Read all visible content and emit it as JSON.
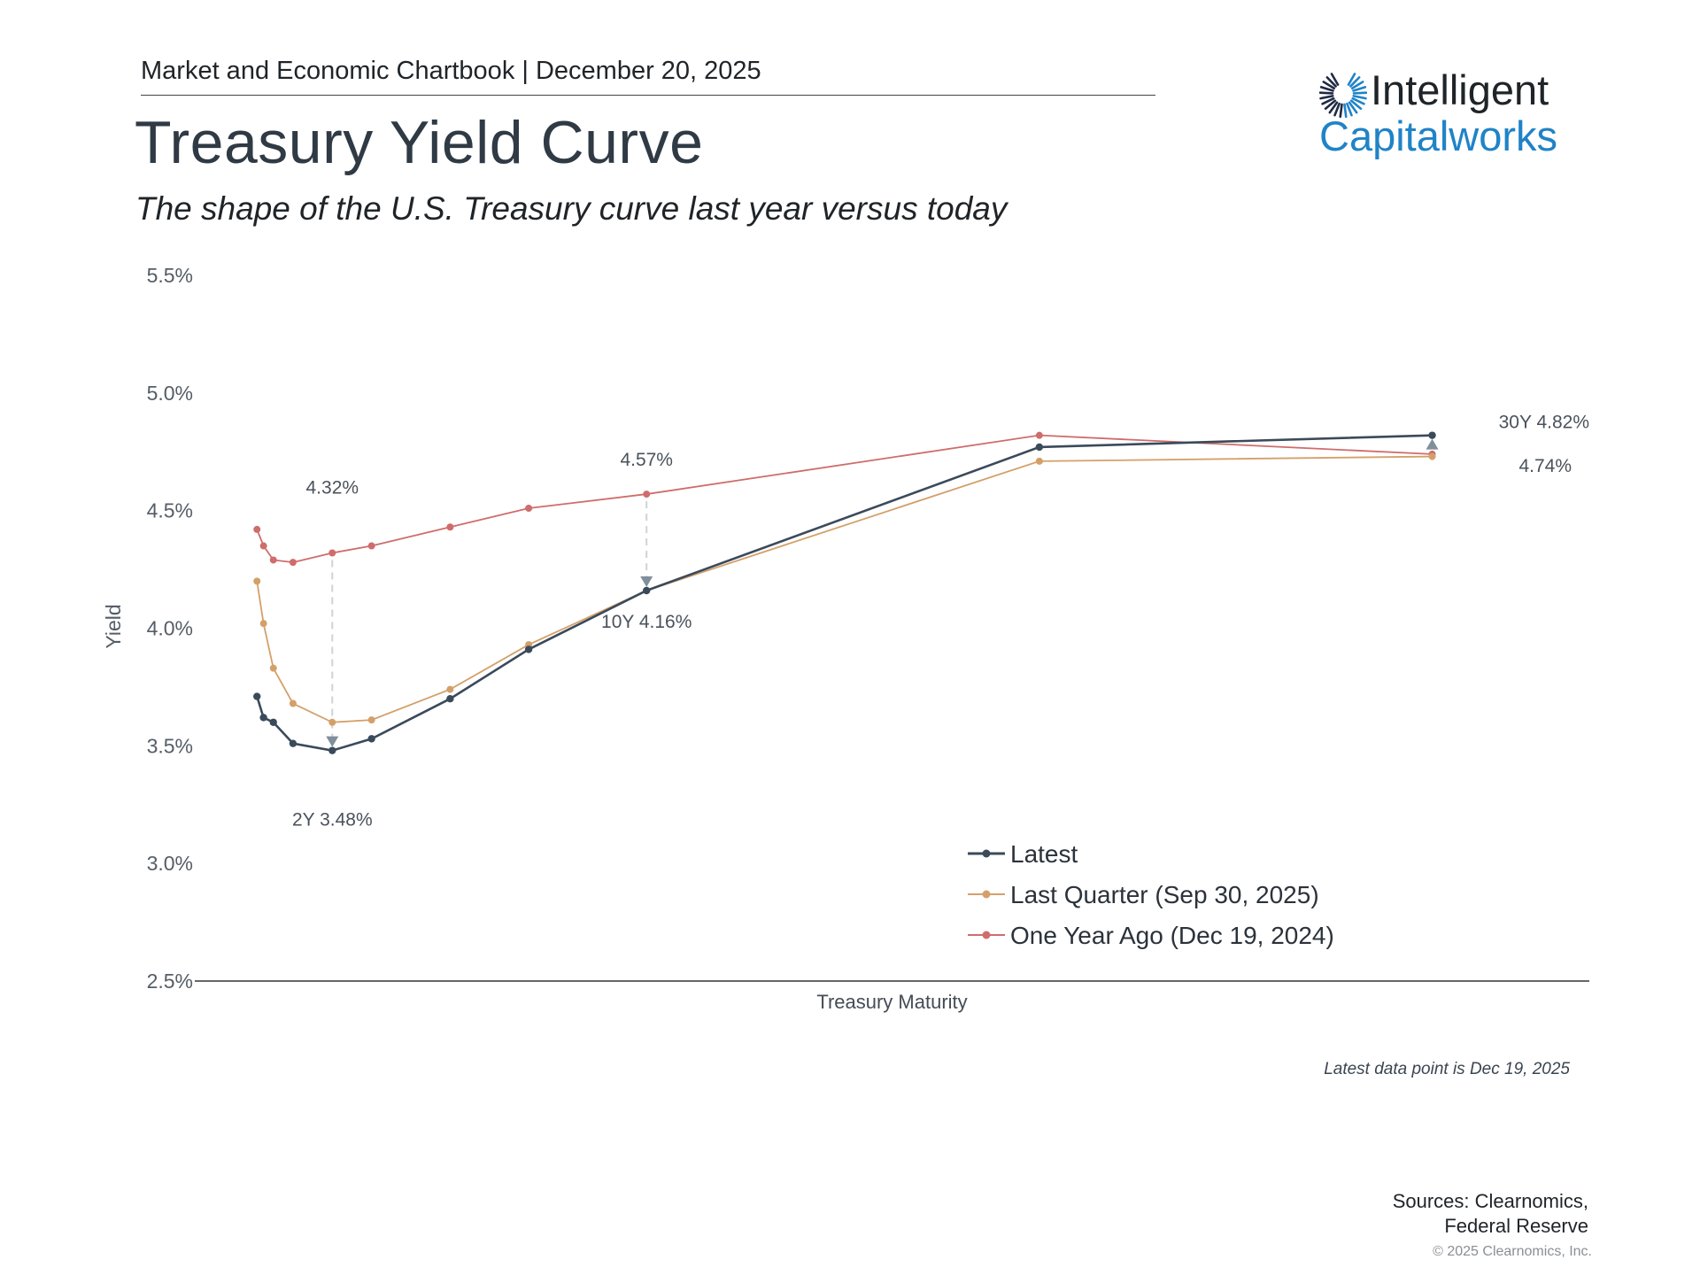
{
  "header": {
    "chartbook": "Market and Economic Chartbook | December 20, 2025",
    "title": "Treasury Yield Curve",
    "subtitle": "The shape of the U.S. Treasury curve last year versus today"
  },
  "logo": {
    "word1": "Intelligent",
    "word2": "Capitalworks",
    "color_dark": "#1f2428",
    "color_blue": "#1f83c7"
  },
  "chart_data": {
    "type": "line",
    "xlabel": "Treasury Maturity",
    "ylabel": "Yield",
    "ylim": [
      2.5,
      5.5
    ],
    "yticks": [
      "5.5%",
      "5.0%",
      "4.5%",
      "4.0%",
      "3.5%",
      "3.0%",
      "2.5%"
    ],
    "ytick_values": [
      5.5,
      5.0,
      4.5,
      4.0,
      3.5,
      3.0,
      2.5
    ],
    "x_maturity_years": [
      0.083,
      0.25,
      0.5,
      1,
      2,
      3,
      5,
      7,
      10,
      20,
      30
    ],
    "xlim": [
      -1.5,
      34
    ],
    "series": [
      {
        "name": "Latest",
        "color": "#3b4a5a",
        "values": [
          3.71,
          3.62,
          3.6,
          3.51,
          3.48,
          3.53,
          3.7,
          3.91,
          4.16,
          4.77,
          4.82
        ]
      },
      {
        "name": "Last Quarter (Sep 30, 2025)",
        "color": "#d4a06a",
        "values": [
          4.2,
          4.02,
          3.83,
          3.68,
          3.6,
          3.61,
          3.74,
          3.93,
          4.16,
          4.71,
          4.73
        ]
      },
      {
        "name": "One Year Ago (Dec 19, 2024)",
        "color": "#cf6c6c",
        "values": [
          4.42,
          4.35,
          4.29,
          4.28,
          4.32,
          4.35,
          4.43,
          4.51,
          4.57,
          4.82,
          4.74
        ]
      }
    ],
    "annotations": [
      {
        "text": "4.32%",
        "x": 2,
        "y": 4.32,
        "role": "top"
      },
      {
        "text": "2Y 3.48%",
        "x": 2,
        "y": 3.48,
        "role": "bottom"
      },
      {
        "text": "4.57%",
        "x": 10,
        "y": 4.57,
        "role": "top"
      },
      {
        "text": "10Y 4.16%",
        "x": 10,
        "y": 4.16,
        "role": "bottom"
      },
      {
        "text": "30Y 4.82%",
        "x": 30,
        "y": 4.82,
        "role": "right-top"
      },
      {
        "text": "4.74%",
        "x": 30,
        "y": 4.74,
        "role": "right-bottom"
      }
    ],
    "arrows": [
      {
        "x": 2,
        "from": 4.32,
        "to": 3.48,
        "direction": "down"
      },
      {
        "x": 10,
        "from": 4.57,
        "to": 4.16,
        "direction": "down"
      },
      {
        "x": 30,
        "from": 4.74,
        "to": 4.82,
        "direction": "up"
      }
    ],
    "legend_position": "bottom-right",
    "grid": false
  },
  "footer": {
    "note": "Latest data point is Dec 19, 2025",
    "sources_line1": "Sources: Clearnomics,",
    "sources_line2": "Federal Reserve",
    "copyright": "© 2025 Clearnomics, Inc."
  }
}
